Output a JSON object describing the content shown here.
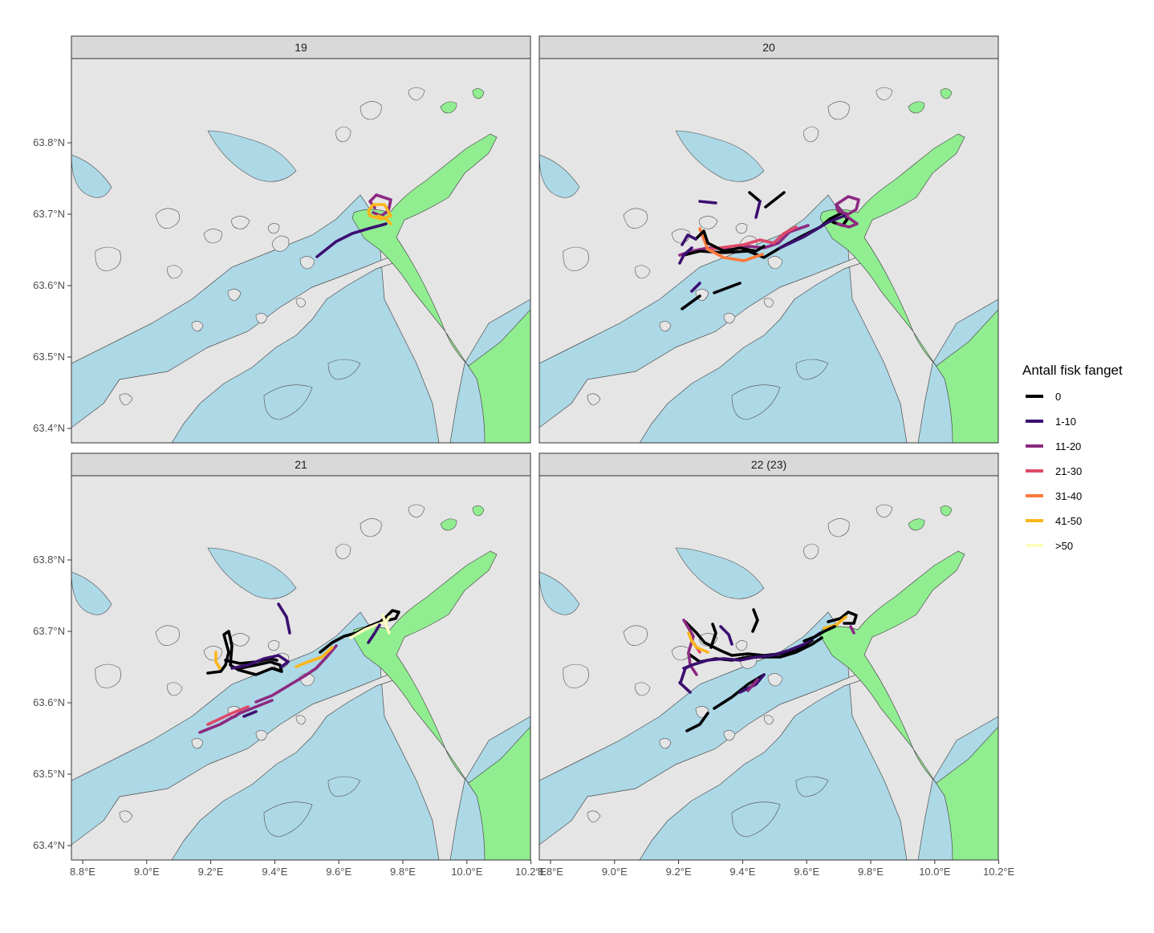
{
  "colors": {
    "sea": "#add8e6",
    "land": "#e5e5e5",
    "highlight_land": "#90ee90",
    "strip_bg": "#d9d9d9",
    "outline": "#333333",
    "coast": "#4d4d4d"
  },
  "panels": [
    {
      "title": "19",
      "key": "p19"
    },
    {
      "title": "20",
      "key": "p20"
    },
    {
      "title": "21",
      "key": "p21"
    },
    {
      "title": "22 (23)",
      "key": "p22"
    }
  ],
  "y_axis": {
    "ticks": [
      "63.8°N",
      "63.7°N",
      "63.6°N",
      "63.5°N",
      "63.4°N"
    ],
    "values": [
      63.8,
      63.7,
      63.6,
      63.5,
      63.4
    ]
  },
  "x_axis": {
    "ticks": [
      "8.8°E",
      "9.0°E",
      "9.2°E",
      "9.4°E",
      "9.6°E",
      "9.8°E",
      "10.0°E",
      "10.2°E"
    ],
    "values": [
      8.8,
      9.0,
      9.2,
      9.4,
      9.6,
      9.8,
      10.0,
      10.2
    ]
  },
  "legend": {
    "title": "Antall fisk fanget",
    "items": [
      {
        "label": "0",
        "color": "#000004"
      },
      {
        "label": "1-10",
        "color": "#3b0f70"
      },
      {
        "label": "11-20",
        "color": "#8c2981"
      },
      {
        "label": "21-30",
        "color": "#de4968"
      },
      {
        "label": "31-40",
        "color": "#fe7a3b"
      },
      {
        "label": "41-50",
        "color": "#fbb61a"
      },
      {
        "label": ">50",
        "color": "#fcfdbf"
      }
    ]
  }
}
